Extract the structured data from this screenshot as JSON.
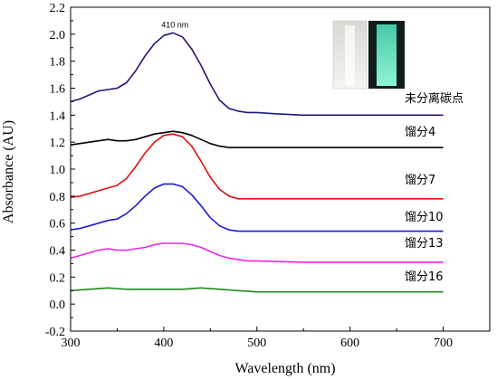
{
  "chart_data": {
    "type": "line",
    "xlabel": "Wavelength (nm)",
    "ylabel": "Absorbance (AU)",
    "xlim": [
      300,
      750
    ],
    "ylim": [
      -0.2,
      2.2
    ],
    "x_ticks": [
      300,
      400,
      500,
      600,
      700
    ],
    "y_ticks": [
      -0.2,
      0.0,
      0.2,
      0.4,
      0.6,
      0.8,
      1.0,
      1.2,
      1.4,
      1.6,
      1.8,
      2.0,
      2.2
    ],
    "y_tick_labels": [
      "-0.2",
      "0.0",
      "0.2",
      "0.4",
      "0.6",
      "0.8",
      "1.0",
      "1.2",
      "1.4",
      "1.6",
      "1.8",
      "2.0",
      "2.2"
    ],
    "grid": false,
    "annotations": [
      {
        "text": "410 nm",
        "x": 412,
        "y": 2.07
      }
    ],
    "inset": {
      "description": "photo of cuvette under daylight and UV light",
      "left_color": "#f2f2ee",
      "right_color": "#6fe8c9"
    },
    "series": [
      {
        "name": "未分离碳点",
        "color": "#1a1a7a",
        "x": [
          300,
          310,
          320,
          330,
          340,
          350,
          360,
          370,
          380,
          390,
          400,
          410,
          420,
          430,
          440,
          450,
          460,
          470,
          480,
          490,
          500,
          520,
          550,
          600,
          650,
          700
        ],
        "y": [
          1.5,
          1.52,
          1.55,
          1.58,
          1.59,
          1.6,
          1.64,
          1.73,
          1.84,
          1.93,
          1.99,
          2.01,
          1.98,
          1.89,
          1.77,
          1.63,
          1.51,
          1.45,
          1.43,
          1.42,
          1.42,
          1.41,
          1.4,
          1.4,
          1.4,
          1.4
        ]
      },
      {
        "name": "馏分4",
        "color": "#000000",
        "x": [
          300,
          310,
          320,
          330,
          340,
          350,
          360,
          370,
          380,
          390,
          400,
          410,
          420,
          430,
          440,
          450,
          460,
          470,
          480,
          490,
          500,
          550,
          600,
          650,
          700
        ],
        "y": [
          1.18,
          1.19,
          1.2,
          1.21,
          1.22,
          1.21,
          1.21,
          1.22,
          1.24,
          1.26,
          1.27,
          1.28,
          1.27,
          1.25,
          1.22,
          1.19,
          1.17,
          1.16,
          1.16,
          1.16,
          1.16,
          1.16,
          1.16,
          1.16,
          1.16
        ]
      },
      {
        "name": "馏分7",
        "color": "#e01010",
        "x": [
          300,
          310,
          320,
          330,
          340,
          350,
          360,
          370,
          380,
          390,
          400,
          410,
          420,
          430,
          440,
          450,
          460,
          470,
          480,
          490,
          500,
          550,
          600,
          650,
          700
        ],
        "y": [
          0.79,
          0.8,
          0.82,
          0.84,
          0.86,
          0.88,
          0.93,
          1.02,
          1.12,
          1.2,
          1.25,
          1.26,
          1.24,
          1.17,
          1.06,
          0.94,
          0.85,
          0.8,
          0.78,
          0.78,
          0.78,
          0.78,
          0.78,
          0.78,
          0.78
        ]
      },
      {
        "name": "馏分10",
        "color": "#1a1ad6",
        "x": [
          300,
          310,
          320,
          330,
          340,
          350,
          360,
          370,
          380,
          390,
          400,
          410,
          420,
          430,
          440,
          450,
          460,
          470,
          480,
          490,
          500,
          550,
          600,
          650,
          700
        ],
        "y": [
          0.55,
          0.56,
          0.58,
          0.6,
          0.62,
          0.63,
          0.67,
          0.73,
          0.8,
          0.86,
          0.89,
          0.89,
          0.87,
          0.81,
          0.73,
          0.64,
          0.58,
          0.55,
          0.54,
          0.54,
          0.54,
          0.54,
          0.54,
          0.54,
          0.54
        ]
      },
      {
        "name": "馏分13",
        "color": "#ee22ee",
        "x": [
          300,
          310,
          320,
          330,
          340,
          350,
          360,
          370,
          380,
          390,
          400,
          410,
          420,
          430,
          440,
          450,
          460,
          470,
          480,
          490,
          500,
          550,
          600,
          650,
          700
        ],
        "y": [
          0.34,
          0.36,
          0.38,
          0.4,
          0.41,
          0.4,
          0.4,
          0.41,
          0.42,
          0.44,
          0.45,
          0.45,
          0.45,
          0.44,
          0.42,
          0.39,
          0.36,
          0.34,
          0.33,
          0.32,
          0.32,
          0.31,
          0.31,
          0.31,
          0.31
        ]
      },
      {
        "name": "馏分16",
        "color": "#1f8a1f",
        "x": [
          300,
          320,
          340,
          360,
          380,
          400,
          420,
          440,
          460,
          480,
          500,
          550,
          600,
          650,
          700
        ],
        "y": [
          0.1,
          0.11,
          0.12,
          0.11,
          0.11,
          0.11,
          0.11,
          0.12,
          0.11,
          0.1,
          0.09,
          0.09,
          0.09,
          0.09,
          0.09
        ]
      }
    ]
  }
}
